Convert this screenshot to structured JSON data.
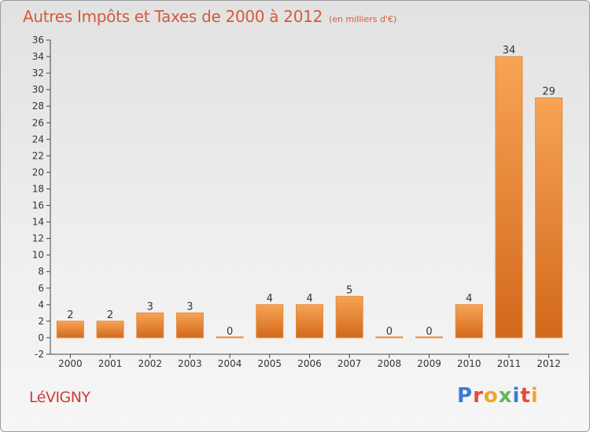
{
  "header": {
    "title": "Autres Impôts et Taxes de 2000 à 2012",
    "unit": "(en milliers d'€)"
  },
  "footer": {
    "commune": "LéVIGNY",
    "logo": "Proxiti",
    "logo_colors": [
      "#3a7bd5",
      "#e84a3a",
      "#f2a531",
      "#5cb85c",
      "#3a7bd5",
      "#e84a3a",
      "#f2a531"
    ]
  },
  "chart_data": {
    "type": "bar",
    "categories": [
      "2000",
      "2001",
      "2002",
      "2003",
      "2004",
      "2005",
      "2006",
      "2007",
      "2008",
      "2009",
      "2010",
      "2011",
      "2012"
    ],
    "values": [
      2,
      2,
      3,
      3,
      0,
      4,
      4,
      5,
      0,
      0,
      4,
      34,
      29
    ],
    "ylim": [
      -2,
      36
    ],
    "yticks": [
      -2,
      0,
      2,
      4,
      6,
      8,
      10,
      12,
      14,
      16,
      18,
      20,
      22,
      24,
      26,
      28,
      30,
      32,
      34,
      36
    ],
    "grid": false,
    "colors": {
      "bar_top": "#f7a454",
      "bar_bottom": "#d2681c",
      "bar_edge": "#e68a3c",
      "axis": "#444444"
    }
  }
}
